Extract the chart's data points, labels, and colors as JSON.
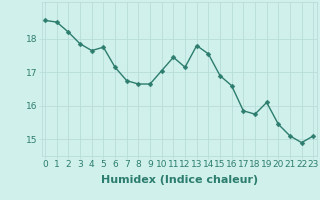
{
  "x": [
    0,
    1,
    2,
    3,
    4,
    5,
    6,
    7,
    8,
    9,
    10,
    11,
    12,
    13,
    14,
    15,
    16,
    17,
    18,
    19,
    20,
    21,
    22,
    23
  ],
  "y": [
    18.55,
    18.5,
    18.2,
    17.85,
    17.65,
    17.75,
    17.15,
    16.75,
    16.65,
    16.65,
    17.05,
    17.45,
    17.15,
    17.8,
    17.55,
    16.9,
    16.6,
    15.85,
    15.75,
    16.1,
    15.45,
    15.1,
    14.9,
    15.1
  ],
  "line_color": "#2d7d6e",
  "marker": "D",
  "markersize": 2.5,
  "linewidth": 1.0,
  "background_color": "#cff0eb",
  "grid_color": "#b8ddd8",
  "xlabel": "Humidex (Indice chaleur)",
  "ylabel": "",
  "yticks": [
    15,
    16,
    17,
    18
  ],
  "xticks": [
    0,
    1,
    2,
    3,
    4,
    5,
    6,
    7,
    8,
    9,
    10,
    11,
    12,
    13,
    14,
    15,
    16,
    17,
    18,
    19,
    20,
    21,
    22,
    23
  ],
  "ylim": [
    14.5,
    19.1
  ],
  "xlim": [
    -0.3,
    23.3
  ],
  "xlabel_fontsize": 8,
  "tick_fontsize": 6.5,
  "title": ""
}
